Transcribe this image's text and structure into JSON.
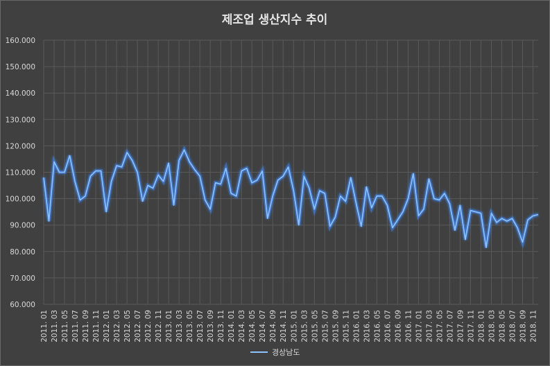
{
  "chart_data": {
    "type": "line",
    "title": "제조업 생산지수 추이",
    "xlabel": "",
    "ylabel": "",
    "ylim": [
      60,
      160
    ],
    "yticks": [
      "60.000",
      "70.000",
      "80.000",
      "90.000",
      "100.000",
      "110.000",
      "120.000",
      "130.000",
      "140.000",
      "150.000",
      "160.000"
    ],
    "grid": true,
    "legend_position": "bottom",
    "line_color": "#8fc3ff",
    "x_tick_labels": [
      "2011. 01",
      "2011. 03",
      "2011. 05",
      "2011. 07",
      "2011. 09",
      "2011. 11",
      "2012. 01",
      "2012. 03",
      "2012. 05",
      "2012. 07",
      "2012. 09",
      "2012. 11",
      "2013. 01",
      "2013. 03",
      "2013. 05",
      "2013. 07",
      "2013. 09",
      "2013. 11",
      "2014. 01",
      "2014. 03",
      "2014. 05",
      "2014. 07",
      "2014. 09",
      "2014. 11",
      "2015. 01",
      "2015. 03",
      "2015. 05",
      "2015. 07",
      "2015. 09",
      "2015. 11",
      "2016. 01",
      "2016. 03",
      "2016. 05",
      "2016. 07",
      "2016. 09",
      "2016. 11",
      "2017. 01",
      "2017. 03",
      "2017. 05",
      "2017. 07",
      "2017. 09",
      "2017. 11",
      "2018. 01",
      "2018. 03",
      "2018. 05",
      "2018. 07",
      "2018. 09",
      "2018. 11"
    ],
    "x": [
      "2011. 01",
      "2011. 02",
      "2011. 03",
      "2011. 04",
      "2011. 05",
      "2011. 06",
      "2011. 07",
      "2011. 08",
      "2011. 09",
      "2011. 10",
      "2011. 11",
      "2011. 12",
      "2012. 01",
      "2012. 02",
      "2012. 03",
      "2012. 04",
      "2012. 05",
      "2012. 06",
      "2012. 07",
      "2012. 08",
      "2012. 09",
      "2012. 10",
      "2012. 11",
      "2012. 12",
      "2013. 01",
      "2013. 02",
      "2013. 03",
      "2013. 04",
      "2013. 05",
      "2013. 06",
      "2013. 07",
      "2013. 08",
      "2013. 09",
      "2013. 10",
      "2013. 11",
      "2013. 12",
      "2014. 01",
      "2014. 02",
      "2014. 03",
      "2014. 04",
      "2014. 05",
      "2014. 06",
      "2014. 07",
      "2014. 08",
      "2014. 09",
      "2014. 10",
      "2014. 11",
      "2014. 12",
      "2015. 01",
      "2015. 02",
      "2015. 03",
      "2015. 04",
      "2015. 05",
      "2015. 06",
      "2015. 07",
      "2015. 08",
      "2015. 09",
      "2015. 10",
      "2015. 11",
      "2015. 12",
      "2016. 01",
      "2016. 02",
      "2016. 03",
      "2016. 04",
      "2016. 05",
      "2016. 06",
      "2016. 07",
      "2016. 08",
      "2016. 09",
      "2016. 10",
      "2016. 11",
      "2016. 12",
      "2017. 01",
      "2017. 02",
      "2017. 03",
      "2017. 04",
      "2017. 05",
      "2017. 06",
      "2017. 07",
      "2017. 08",
      "2017. 09",
      "2017. 10",
      "2017. 11",
      "2017. 12",
      "2018. 01",
      "2018. 02",
      "2018. 03",
      "2018. 04",
      "2018. 05",
      "2018. 06",
      "2018. 07",
      "2018. 08",
      "2018. 09",
      "2018. 10",
      "2018. 11",
      "2018. 12"
    ],
    "series": [
      {
        "name": "경상남도",
        "values": [
          108,
          91.5,
          114,
          110,
          110,
          116.3,
          106.5,
          99.5,
          101,
          108.5,
          110.5,
          110.5,
          95,
          106.5,
          112.5,
          112,
          117.5,
          114.5,
          110,
          99,
          105,
          104,
          109,
          106.5,
          113.5,
          97.5,
          114.5,
          118.5,
          114,
          111,
          108.5,
          99.5,
          96,
          106,
          105.5,
          111.5,
          102,
          101,
          110.5,
          111.5,
          106,
          107,
          110.5,
          92.5,
          101,
          107,
          108.5,
          112,
          103,
          90,
          108.5,
          104,
          96,
          103,
          102,
          89.5,
          93,
          101,
          99,
          108,
          98.5,
          89.5,
          104.5,
          96.5,
          101,
          101,
          97.5,
          89,
          92,
          95,
          100,
          109.5,
          93.5,
          96,
          107.5,
          100,
          99.5,
          102,
          98,
          88,
          97.5,
          84.5,
          95.5,
          95,
          94.5,
          81.5,
          94.5,
          91,
          92.5,
          91.5,
          92.5,
          89,
          83.5,
          92,
          93.5,
          94
        ]
      }
    ]
  }
}
